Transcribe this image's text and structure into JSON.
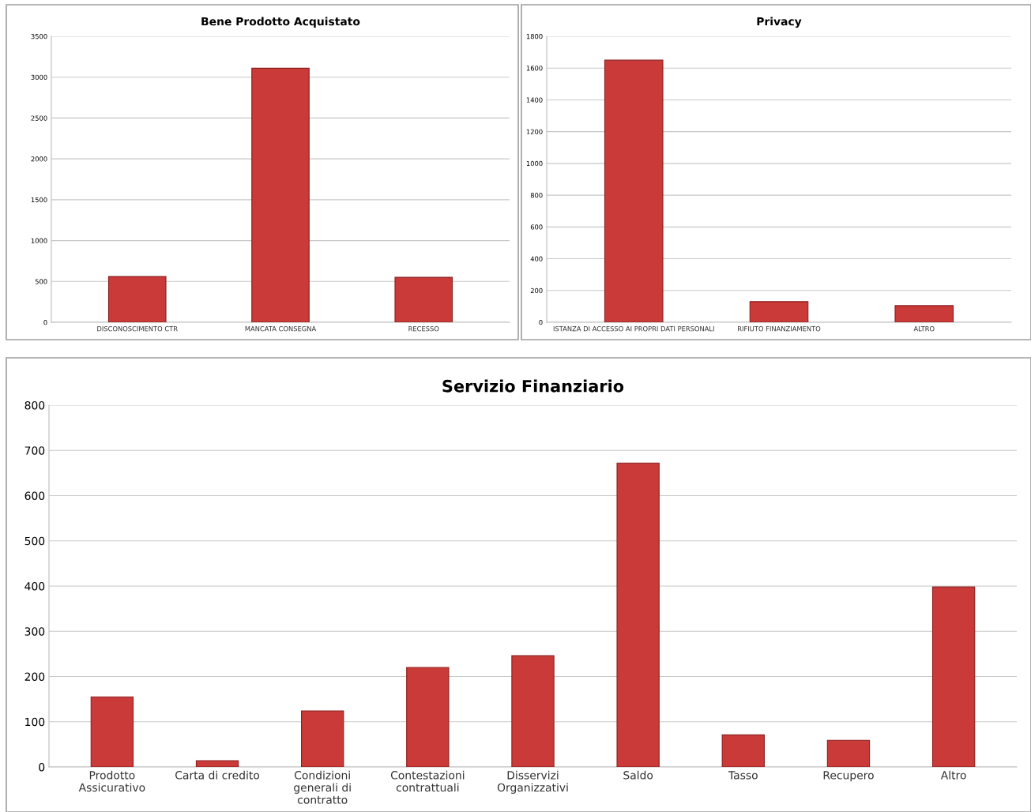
{
  "chart_data": [
    {
      "type": "bar",
      "title": "Bene Prodotto Acquistato",
      "categories": [
        "DISCONOSCIMENTO CTR",
        "MANCATA CONSEGNA",
        "RECESSO"
      ],
      "values": [
        560,
        3110,
        550
      ],
      "color": "#c93a38",
      "ylim": [
        0,
        3500
      ],
      "yticks": [
        0,
        500,
        1000,
        1500,
        2000,
        2500,
        3000,
        3500
      ],
      "grid": "y"
    },
    {
      "type": "bar",
      "title": "Privacy",
      "categories": [
        "ISTANZA DI ACCESSO AI PROPRI DATI PERSONALI",
        "RIFIUTO FINANZIAMENTO",
        "ALTRO"
      ],
      "values": [
        1650,
        130,
        105
      ],
      "color": "#c93a38",
      "ylim": [
        0,
        1800
      ],
      "yticks": [
        0,
        200,
        400,
        600,
        800,
        1000,
        1200,
        1400,
        1600,
        1800
      ],
      "grid": "y"
    },
    {
      "type": "bar",
      "title": "Servizio Finanziario",
      "categories": [
        "Prodotto\nAssicurativo",
        "Carta di credito",
        "Condizioni\ngenerali di\ncontratto",
        "Contestazioni\ncontrattuali",
        "Disservizi\nOrganizzativi",
        "Saldo",
        "Tasso",
        "Recupero",
        "Altro"
      ],
      "values": [
        155,
        14,
        124,
        220,
        246,
        672,
        71,
        59,
        398
      ],
      "color": "#c93a38",
      "ylim": [
        0,
        800
      ],
      "yticks": [
        0,
        100,
        200,
        300,
        400,
        500,
        600,
        700,
        800
      ],
      "grid": "y"
    }
  ]
}
